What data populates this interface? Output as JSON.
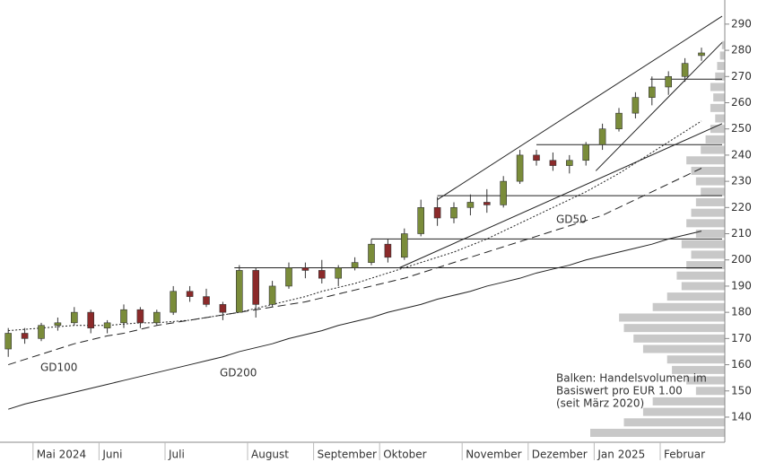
{
  "chart_data": {
    "type": "candlestick",
    "categories": [
      null,
      null,
      "Mai 2024",
      null,
      null,
      null,
      "Juni",
      null,
      null,
      null,
      "Juli",
      null,
      null,
      null,
      null,
      "August",
      null,
      null,
      null,
      "September",
      null,
      null,
      null,
      "Oktober",
      null,
      null,
      null,
      null,
      "November",
      null,
      null,
      null,
      "Dezember",
      null,
      null,
      null,
      "Jan 2025",
      null,
      null,
      null,
      "Februar",
      null,
      null
    ],
    "open": [
      166,
      172,
      170,
      175,
      176,
      180,
      174,
      176,
      181,
      176,
      180,
      188,
      186,
      183,
      180,
      196,
      183,
      190,
      197,
      196,
      193,
      197,
      199,
      206,
      201,
      210,
      220,
      216,
      220,
      222,
      221,
      230,
      240,
      238,
      236,
      238,
      244,
      250,
      256,
      262,
      266,
      270,
      278
    ],
    "high": [
      174,
      174,
      176,
      178,
      182,
      181,
      177,
      183,
      182,
      181,
      190,
      190,
      189,
      184,
      198,
      197,
      192,
      199,
      199,
      200,
      198,
      201,
      208,
      208,
      212,
      223,
      224,
      222,
      225,
      227,
      232,
      242,
      242,
      241,
      240,
      245,
      252,
      258,
      264,
      270,
      272,
      277,
      281
    ],
    "low": [
      163,
      168,
      169,
      173,
      175,
      172,
      172,
      174,
      174,
      175,
      179,
      184,
      182,
      177,
      180,
      178,
      182,
      189,
      193,
      191,
      190,
      196,
      198,
      199,
      200,
      209,
      213,
      214,
      217,
      218,
      220,
      229,
      236,
      234,
      233,
      236,
      242,
      249,
      254,
      259,
      263,
      268,
      276
    ],
    "close": [
      172,
      170,
      175,
      176,
      180,
      174,
      176,
      181,
      176,
      180,
      188,
      186,
      183,
      180,
      196,
      183,
      190,
      197,
      196,
      193,
      197,
      199,
      206,
      201,
      210,
      220,
      216,
      220,
      222,
      221,
      230,
      240,
      238,
      236,
      238,
      244,
      250,
      256,
      262,
      266,
      270,
      275,
      279
    ],
    "up_color": "#7a8c3a",
    "down_color": "#8b2a2a",
    "series": [
      {
        "name": "GD50",
        "color": "#222222",
        "style": "dotted",
        "values": [
          173,
          173.5,
          174,
          174.5,
          175,
          175,
          175,
          175.5,
          176,
          176,
          176.5,
          177,
          178,
          179,
          180,
          181.5,
          183,
          184.5,
          186,
          188,
          189.5,
          191,
          193,
          195,
          197,
          199,
          201,
          203,
          205.5,
          208,
          211,
          214,
          217,
          220,
          223,
          226,
          229.5,
          233,
          237,
          241,
          245,
          249,
          253
        ]
      },
      {
        "name": "GD100",
        "color": "#222222",
        "style": "dashed",
        "values": [
          160,
          162,
          164,
          166,
          168,
          169.5,
          171,
          172,
          173.5,
          175,
          176,
          177,
          178,
          179,
          180,
          181,
          182,
          183,
          184,
          185.5,
          187,
          188.5,
          190,
          191.5,
          193,
          195,
          197,
          199,
          201,
          203,
          205,
          207,
          209,
          211,
          213,
          215,
          217,
          220,
          223,
          226,
          229,
          232,
          235
        ]
      },
      {
        "name": "GD200",
        "color": "#222222",
        "style": "solid",
        "values": [
          143,
          145,
          146.5,
          148,
          149.5,
          151,
          152.5,
          154,
          155.5,
          157,
          158.5,
          160,
          161.5,
          163,
          165,
          166.5,
          168,
          170,
          171.5,
          173,
          175,
          176.5,
          178,
          180,
          181.5,
          183,
          185,
          186.5,
          188,
          190,
          191.5,
          193,
          195,
          196.5,
          198,
          200,
          201.5,
          203,
          204.5,
          206,
          208,
          209.5,
          211
        ]
      }
    ],
    "levels": [
      {
        "price": 197,
        "from": 13.7
      },
      {
        "price": 208,
        "from": 22
      },
      {
        "price": 224.5,
        "from": 26
      },
      {
        "price": 244,
        "from": 32
      },
      {
        "price": 269,
        "from": 38.9
      }
    ],
    "trendlines": [
      {
        "x": [
          26,
          43.25
        ],
        "y": [
          223,
          293
        ]
      },
      {
        "x": [
          23.7,
          43.25
        ],
        "y": [
          197,
          252
        ]
      },
      {
        "x": [
          35.6,
          43.25
        ],
        "y": [
          234,
          283
        ]
      }
    ],
    "volume_profile": {
      "prices": [
        134,
        138,
        142,
        146,
        150,
        154,
        158,
        162,
        166,
        170,
        174,
        178,
        182,
        186,
        190,
        194,
        198,
        202,
        206,
        210,
        214,
        218,
        222,
        226,
        230,
        234,
        238,
        242,
        246,
        250,
        254,
        258,
        262,
        266,
        270,
        274,
        278,
        282
      ],
      "values": [
        140,
        105,
        85,
        75,
        30,
        40,
        55,
        60,
        85,
        95,
        105,
        110,
        75,
        60,
        45,
        50,
        40,
        35,
        45,
        30,
        40,
        35,
        30,
        25,
        30,
        35,
        40,
        25,
        20,
        15,
        10,
        15,
        12,
        15,
        10,
        8,
        5,
        3
      ],
      "color": "#c8c8c8"
    },
    "annotation": [
      "Balken: Handelsvolumen im",
      "Basiswert pro EUR 1.00",
      "(seit März 2020)"
    ],
    "ylim": [
      130.4,
      299.2
    ],
    "yticks": [
      140,
      150,
      160,
      170,
      180,
      190,
      200,
      210,
      220,
      230,
      240,
      250,
      260,
      270,
      280,
      290
    ]
  }
}
